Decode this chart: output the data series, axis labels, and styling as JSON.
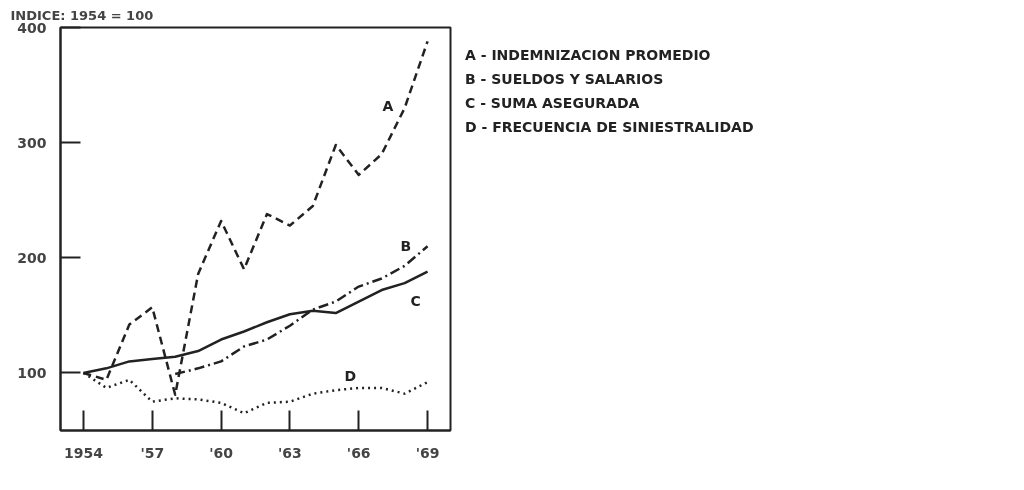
{
  "chart_data": {
    "type": "line",
    "ylabel": "INDICE: 1954 = 100",
    "x": [
      1954,
      1955,
      1956,
      1957,
      1958,
      1959,
      1960,
      1961,
      1962,
      1963,
      1964,
      1965,
      1966,
      1967,
      1968,
      1969
    ],
    "series": [
      {
        "name": "A",
        "color": "#222222",
        "line_style": "dashed",
        "values": [
          100,
          94,
          142,
          157,
          81,
          186,
          232,
          190,
          238,
          228,
          245,
          298,
          272,
          290,
          330,
          388
        ]
      },
      {
        "name": "B",
        "color": "#222222",
        "line_style": "dashdot",
        "values": [
          null,
          null,
          null,
          null,
          99,
          104,
          110,
          123,
          129,
          141,
          155,
          162,
          175,
          182,
          193,
          210
        ]
      },
      {
        "name": "C",
        "color": "#222222",
        "line_style": "solid",
        "values": [
          100,
          104,
          110,
          112,
          114,
          119,
          129,
          136,
          144,
          151,
          154,
          152,
          162,
          172,
          178,
          188
        ]
      },
      {
        "name": "D",
        "color": "#222222",
        "line_style": "dotted",
        "values": [
          100,
          87,
          94,
          75,
          78,
          77,
          74,
          65,
          74,
          75,
          82,
          85,
          87,
          87,
          82,
          92
        ]
      }
    ],
    "xlim": [
      1953,
      1970
    ],
    "ylim": [
      50,
      400
    ],
    "xticks": [
      {
        "value": 1954,
        "label": "1954"
      },
      {
        "value": 1957,
        "label": "'57"
      },
      {
        "value": 1960,
        "label": "'60"
      },
      {
        "value": 1963,
        "label": "'63"
      },
      {
        "value": 1966,
        "label": "'66"
      },
      {
        "value": 1969,
        "label": "'69"
      }
    ],
    "yticks": [
      100,
      200,
      300,
      400
    ],
    "annotations": [
      "A - INDEMNIZACION PROMEDIO",
      "B - SUELDOS Y SALARIOS",
      "C - SUMA ASEGURADA",
      "D - FRECUENCIA DE SINIESTRALIDAD"
    ]
  }
}
